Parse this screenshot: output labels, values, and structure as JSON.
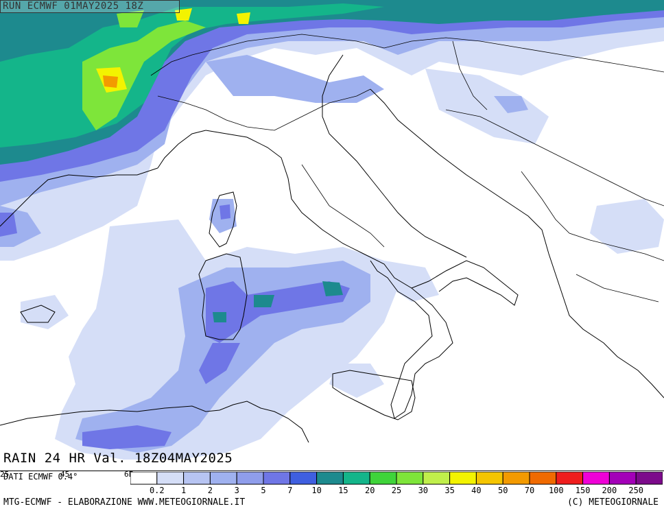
{
  "header": {
    "run_label": "RUN ECMWF 01MAY2025 18Z"
  },
  "map": {
    "variable_label": "RAIN 24 HR Val. 18Z04MAY2025",
    "source_note": "DATI ECMWF 0.4°",
    "grid_labels": [
      "25",
      "45",
      "6E"
    ]
  },
  "legend": {
    "labels": [
      "0.2",
      "1",
      "2",
      "3",
      "5",
      "7",
      "10",
      "15",
      "20",
      "25",
      "30",
      "35",
      "40",
      "50",
      "70",
      "100",
      "150",
      "200",
      "250"
    ],
    "colors": [
      "#ffffff",
      "#d5def7",
      "#b7c4f2",
      "#9fb1ef",
      "#8f9deb",
      "#6f76e6",
      "#3f5fe0",
      "#1d8a8e",
      "#14b58a",
      "#3fd43a",
      "#7ee53a",
      "#c0ef4b",
      "#f3f300",
      "#f5c500",
      "#f39a00",
      "#f06a00",
      "#ef1d1d",
      "#ef00d7",
      "#a300b8",
      "#7c0a8b"
    ]
  },
  "footer": {
    "left": "MTG-ECMWF - ELABORAZIONE WWW.METEOGIORNALE.IT",
    "right": "(C) METEOGIORNALE"
  }
}
